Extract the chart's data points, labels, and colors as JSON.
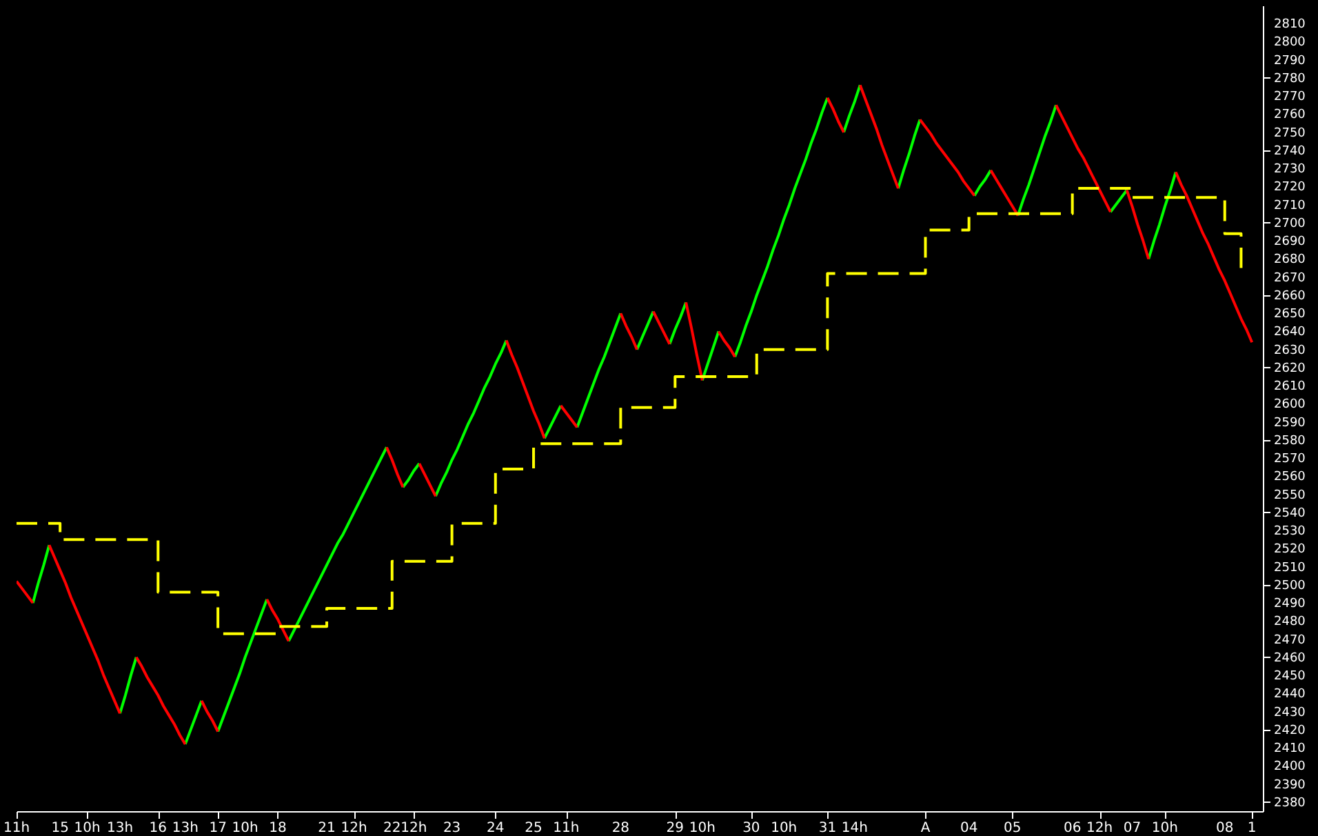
{
  "chart_data": {
    "type": "line",
    "ylim": [
      2375,
      2820
    ],
    "categories": [
      "11h",
      null,
      null,
      null,
      null,
      null,
      null,
      null,
      "15",
      null,
      null,
      null,
      null,
      "10h",
      null,
      null,
      null,
      null,
      null,
      "13h",
      null,
      null,
      null,
      null,
      null,
      null,
      "16",
      null,
      null,
      null,
      null,
      "13h",
      null,
      null,
      null,
      null,
      null,
      "17",
      null,
      null,
      null,
      null,
      "10h",
      null,
      null,
      null,
      null,
      null,
      "18",
      null,
      null,
      null,
      null,
      null,
      null,
      null,
      null,
      "21",
      null,
      null,
      null,
      null,
      "12h",
      null,
      null,
      null,
      null,
      null,
      null,
      "22",
      null,
      null,
      null,
      "12h",
      null,
      null,
      null,
      null,
      null,
      null,
      "23",
      null,
      null,
      null,
      null,
      null,
      null,
      null,
      "24",
      null,
      null,
      null,
      null,
      null,
      null,
      "25",
      null,
      null,
      null,
      null,
      null,
      "11h",
      null,
      null,
      null,
      null,
      null,
      null,
      null,
      null,
      null,
      "28",
      null,
      null,
      null,
      null,
      null,
      null,
      null,
      null,
      null,
      "29",
      null,
      null,
      null,
      null,
      "10h",
      null,
      null,
      null,
      null,
      null,
      null,
      null,
      null,
      "30",
      null,
      null,
      null,
      null,
      null,
      "10h",
      null,
      null,
      null,
      null,
      null,
      null,
      null,
      "31",
      null,
      null,
      null,
      null,
      "14h",
      null,
      null,
      null,
      null,
      null,
      null,
      null,
      null,
      null,
      null,
      null,
      null,
      "A",
      null,
      null,
      null,
      null,
      null,
      null,
      null,
      "04",
      null,
      null,
      null,
      null,
      null,
      null,
      null,
      "05",
      null,
      null,
      null,
      null,
      null,
      null,
      null,
      null,
      null,
      null,
      "06",
      null,
      null,
      null,
      null,
      "12h",
      null,
      null,
      null,
      null,
      null,
      "07",
      null,
      null,
      null,
      null,
      null,
      "10h",
      null,
      null,
      null,
      null,
      null,
      null,
      null,
      null,
      null,
      null,
      "08",
      null,
      null,
      null,
      null,
      "1",
      null
    ],
    "yticks": [
      2380,
      2390,
      2400,
      2410,
      2420,
      2430,
      2440,
      2450,
      2460,
      2470,
      2480,
      2490,
      2500,
      2510,
      2520,
      2530,
      2540,
      2550,
      2560,
      2570,
      2580,
      2590,
      2600,
      2610,
      2620,
      2630,
      2640,
      2650,
      2660,
      2670,
      2680,
      2690,
      2700,
      2710,
      2720,
      2730,
      2740,
      2750,
      2760,
      2770,
      2780,
      2790,
      2800,
      2810
    ],
    "series": [
      {
        "color": "#00ff00",
        "values": [
          null,
          null,
          null,
          2490,
          2501,
          2511,
          2522,
          null,
          null,
          null,
          null,
          null,
          null,
          null,
          null,
          null,
          null,
          null,
          null,
          2429,
          2439,
          2450,
          2460,
          null,
          null,
          null,
          null,
          null,
          null,
          null,
          null,
          2412,
          2420,
          2428,
          2436,
          null,
          null,
          2419,
          2427,
          2435,
          2443,
          2451,
          2460,
          2468,
          2476,
          2484,
          2492,
          null,
          null,
          null,
          2469,
          2475,
          2481,
          2487,
          2493,
          2499,
          2505,
          2511,
          2517,
          2523,
          2528,
          2534,
          2540,
          2546,
          2552,
          2558,
          2564,
          2570,
          2576,
          null,
          null,
          2554,
          2558,
          2563,
          2567,
          null,
          null,
          2549,
          2556,
          2562,
          2569,
          2575,
          2582,
          2589,
          2595,
          2602,
          2609,
          2615,
          2622,
          2628,
          2635,
          null,
          null,
          null,
          null,
          null,
          null,
          2581,
          2587,
          2593,
          2599,
          null,
          null,
          2587,
          2595,
          2603,
          2611,
          2619,
          2626,
          2634,
          2642,
          2650,
          null,
          null,
          2630,
          2637,
          2644,
          2651,
          null,
          null,
          2633,
          2641,
          2648,
          2656,
          null,
          null,
          2613,
          2622,
          2631,
          2640,
          null,
          null,
          2626,
          2634,
          2643,
          2651,
          2660,
          2668,
          2676,
          2685,
          2693,
          2702,
          2710,
          2719,
          2727,
          2735,
          2744,
          2752,
          2761,
          2769,
          null,
          null,
          2750,
          2759,
          2767,
          2776,
          null,
          null,
          null,
          null,
          null,
          null,
          2719,
          2729,
          2738,
          2748,
          2757,
          null,
          null,
          null,
          null,
          null,
          null,
          null,
          null,
          null,
          2715,
          2720,
          2724,
          2729,
          null,
          null,
          null,
          null,
          2704,
          2713,
          2721,
          2730,
          2739,
          2748,
          2756,
          2765,
          null,
          null,
          null,
          null,
          null,
          null,
          null,
          null,
          null,
          2706,
          2710,
          2714,
          2718,
          null,
          null,
          null,
          2680,
          2690,
          2699,
          2709,
          2718,
          2728,
          null,
          null,
          null,
          null,
          null,
          null,
          null,
          null,
          null,
          null,
          null,
          null,
          null,
          null,
          null
        ]
      },
      {
        "color": "#ff0000",
        "values": [
          2502,
          2498,
          2494,
          2490,
          null,
          null,
          2522,
          2515,
          2508,
          2501,
          2493,
          2486,
          2479,
          2472,
          2465,
          2458,
          2450,
          2443,
          2436,
          2429,
          null,
          null,
          2460,
          2455,
          2449,
          2444,
          2439,
          2433,
          2428,
          2423,
          2417,
          2412,
          null,
          null,
          2436,
          2430,
          2425,
          2419,
          null,
          null,
          null,
          null,
          null,
          null,
          null,
          null,
          2492,
          2486,
          2481,
          2475,
          2469,
          null,
          null,
          null,
          null,
          null,
          null,
          null,
          null,
          null,
          null,
          null,
          null,
          null,
          null,
          null,
          null,
          null,
          2576,
          2569,
          2561,
          2554,
          null,
          null,
          2567,
          2561,
          2555,
          2549,
          null,
          null,
          null,
          null,
          null,
          null,
          null,
          null,
          null,
          null,
          null,
          null,
          2635,
          2627,
          2620,
          2612,
          2604,
          2596,
          2589,
          2581,
          null,
          null,
          2599,
          2595,
          2591,
          2587,
          null,
          null,
          null,
          null,
          null,
          null,
          null,
          2650,
          2643,
          2637,
          2630,
          null,
          null,
          2651,
          2645,
          2639,
          2633,
          null,
          null,
          2656,
          2642,
          2627,
          2613,
          null,
          null,
          2640,
          2635,
          2631,
          2626,
          null,
          null,
          null,
          null,
          null,
          null,
          null,
          null,
          null,
          null,
          null,
          null,
          null,
          null,
          null,
          null,
          2769,
          2763,
          2756,
          2750,
          null,
          null,
          2776,
          2768,
          2760,
          2752,
          2743,
          2735,
          2727,
          2719,
          null,
          null,
          null,
          2757,
          2753,
          2749,
          2744,
          2740,
          2736,
          2732,
          2728,
          2723,
          2719,
          2715,
          null,
          null,
          2729,
          2724,
          2719,
          2714,
          2709,
          2704,
          null,
          null,
          null,
          null,
          null,
          null,
          2765,
          2759,
          2753,
          2747,
          2741,
          2736,
          2730,
          2724,
          2718,
          2712,
          2706,
          null,
          null,
          2718,
          2709,
          2699,
          2690,
          2680,
          null,
          null,
          null,
          null,
          2728,
          2721,
          2715,
          2708,
          2701,
          2694,
          2688,
          2681,
          2674,
          2668,
          2661,
          2654,
          2647,
          2641,
          2634,
          null
        ]
      },
      {
        "type": "step",
        "color": "#ffff00",
        "line_style": "dashed",
        "values": [
          2534,
          2534,
          2534,
          2534,
          2534,
          2534,
          2534,
          2534,
          2525,
          2525,
          2525,
          2525,
          2525,
          2525,
          2525,
          2525,
          2525,
          2525,
          2525,
          2525,
          2525,
          2525,
          2525,
          2525,
          2525,
          2525,
          2496,
          2496,
          2496,
          2496,
          2496,
          2496,
          2496,
          2496,
          2496,
          2496,
          2496,
          2473,
          2473,
          2473,
          2473,
          2473,
          2473,
          2473,
          2473,
          2473,
          2473,
          2473,
          2477,
          2477,
          2477,
          2477,
          2477,
          2477,
          2477,
          2477,
          2477,
          2487,
          2487,
          2487,
          2487,
          2487,
          2487,
          2487,
          2487,
          2487,
          2487,
          2487,
          2487,
          2513,
          2513,
          2513,
          2513,
          2513,
          2513,
          2513,
          2513,
          2513,
          2513,
          2513,
          2534,
          2534,
          2534,
          2534,
          2534,
          2534,
          2534,
          2534,
          2564,
          2564,
          2564,
          2564,
          2564,
          2564,
          2564,
          2578,
          2578,
          2578,
          2578,
          2578,
          2578,
          2578,
          2578,
          2578,
          2578,
          2578,
          2578,
          2578,
          2578,
          2578,
          2578,
          2598,
          2598,
          2598,
          2598,
          2598,
          2598,
          2598,
          2598,
          2598,
          2598,
          2615,
          2615,
          2615,
          2615,
          2615,
          2615,
          2615,
          2615,
          2615,
          2615,
          2615,
          2615,
          2615,
          2615,
          2615,
          2630,
          2630,
          2630,
          2630,
          2630,
          2630,
          2630,
          2630,
          2630,
          2630,
          2630,
          2630,
          2630,
          2672,
          2672,
          2672,
          2672,
          2672,
          2672,
          2672,
          2672,
          2672,
          2672,
          2672,
          2672,
          2672,
          2672,
          2672,
          2672,
          2672,
          2672,
          2696,
          2696,
          2696,
          2696,
          2696,
          2696,
          2696,
          2696,
          2705,
          2705,
          2705,
          2705,
          2705,
          2705,
          2705,
          2705,
          2705,
          2705,
          2705,
          2705,
          2705,
          2705,
          2705,
          2705,
          2705,
          2705,
          2705,
          2719,
          2719,
          2719,
          2719,
          2719,
          2719,
          2719,
          2719,
          2719,
          2719,
          2719,
          2714,
          2714,
          2714,
          2714,
          2714,
          2714,
          2714,
          2714,
          2714,
          2714,
          2714,
          2714,
          2714,
          2714,
          2714,
          2714,
          2714,
          2694,
          2694,
          2694,
          2675,
          null,
          null,
          null
        ]
      }
    ]
  }
}
